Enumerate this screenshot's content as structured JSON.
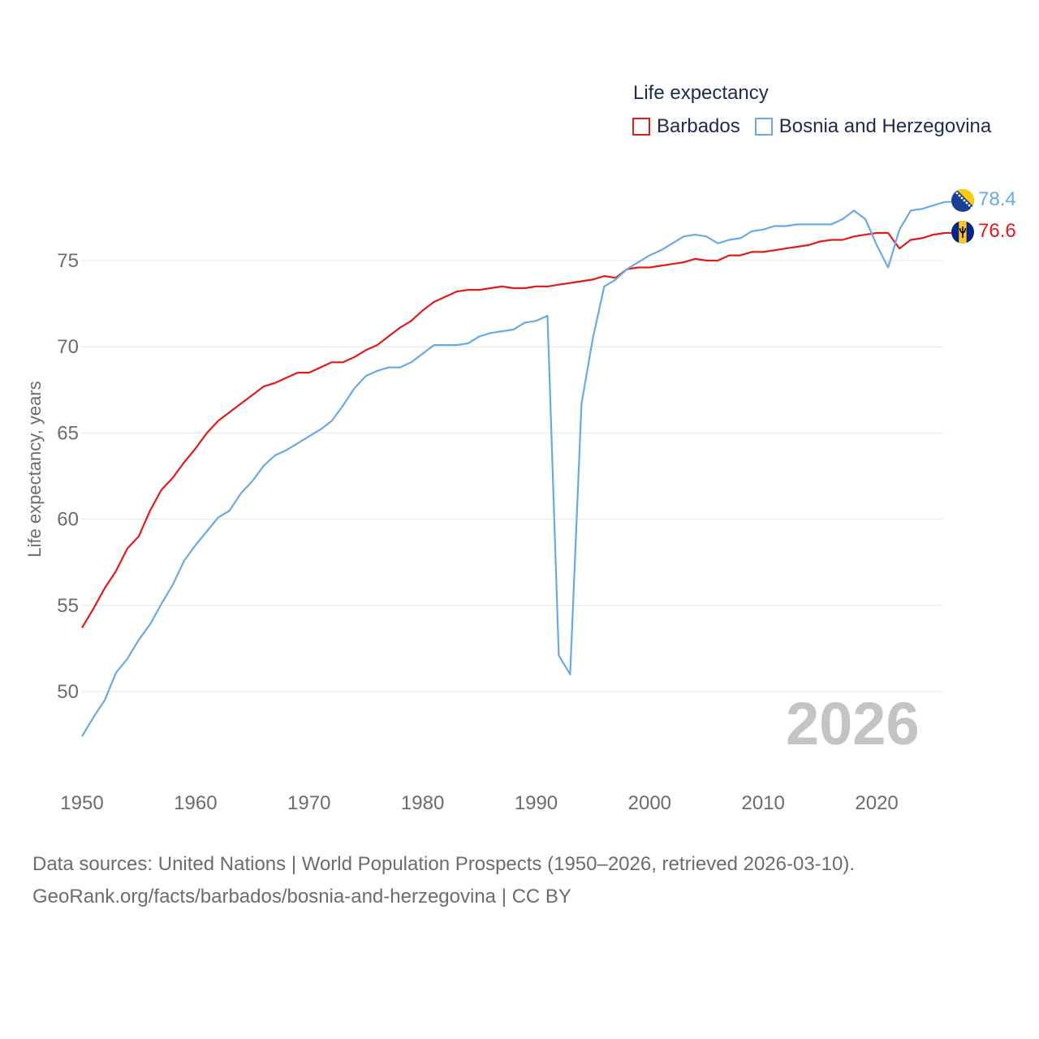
{
  "legend": {
    "title": "Life expectancy",
    "items": [
      {
        "label": "Barbados",
        "color": "#e31a1c"
      },
      {
        "label": "Bosnia and Herzegovina",
        "color": "#6aaae4"
      }
    ]
  },
  "year_display": "2026",
  "end_labels": {
    "bosnia": "78.4",
    "barbados": "76.6"
  },
  "footer": {
    "line1": "Data sources: United Nations | World Population Prospects (1950–2026, retrieved 2026-03-10).",
    "line2": "GeoRank.org/facts/barbados/bosnia-and-herzegovina | CC BY"
  },
  "chart_data": {
    "type": "line",
    "title": "Life expectancy",
    "ylabel": "Life expectancy, years",
    "xlabel": "",
    "xlim": [
      1950,
      2026
    ],
    "ylim": [
      45,
      80
    ],
    "xticks": [
      1950,
      1960,
      1970,
      1980,
      1990,
      2000,
      2010,
      2020
    ],
    "yticks": [
      50,
      55,
      60,
      65,
      70,
      75
    ],
    "grid": true,
    "legend_position": "top-right",
    "x": [
      1950,
      1951,
      1952,
      1953,
      1954,
      1955,
      1956,
      1957,
      1958,
      1959,
      1960,
      1961,
      1962,
      1963,
      1964,
      1965,
      1966,
      1967,
      1968,
      1969,
      1970,
      1971,
      1972,
      1973,
      1974,
      1975,
      1976,
      1977,
      1978,
      1979,
      1980,
      1981,
      1982,
      1983,
      1984,
      1985,
      1986,
      1987,
      1988,
      1989,
      1990,
      1991,
      1992,
      1993,
      1994,
      1995,
      1996,
      1997,
      1998,
      1999,
      2000,
      2001,
      2002,
      2003,
      2004,
      2005,
      2006,
      2007,
      2008,
      2009,
      2010,
      2011,
      2012,
      2013,
      2014,
      2015,
      2016,
      2017,
      2018,
      2019,
      2020,
      2021,
      2022,
      2023,
      2024,
      2025,
      2026
    ],
    "series": [
      {
        "name": "Barbados",
        "color": "#e31a1c",
        "values": [
          53.7,
          54.8,
          56.0,
          57.0,
          58.3,
          59.0,
          60.5,
          61.7,
          62.4,
          63.3,
          64.1,
          65.0,
          65.7,
          66.2,
          66.7,
          67.2,
          67.7,
          67.9,
          68.2,
          68.5,
          68.5,
          68.8,
          69.1,
          69.1,
          69.4,
          69.8,
          70.1,
          70.6,
          71.1,
          71.5,
          72.1,
          72.6,
          72.9,
          73.2,
          73.3,
          73.3,
          73.4,
          73.5,
          73.4,
          73.4,
          73.5,
          73.5,
          73.6,
          73.7,
          73.8,
          73.9,
          74.1,
          74.0,
          74.5,
          74.6,
          74.6,
          74.7,
          74.8,
          74.9,
          75.1,
          75.0,
          75.0,
          75.3,
          75.3,
          75.5,
          75.5,
          75.6,
          75.7,
          75.8,
          75.9,
          76.1,
          76.2,
          76.2,
          76.4,
          76.5,
          76.6,
          76.6,
          75.7,
          76.2,
          76.3,
          76.5,
          76.6
        ]
      },
      {
        "name": "Bosnia and Herzegovina",
        "color": "#6aaae4",
        "values": [
          47.4,
          48.5,
          49.5,
          51.1,
          51.9,
          53.0,
          53.9,
          55.1,
          56.2,
          57.6,
          58.5,
          59.3,
          60.1,
          60.5,
          61.5,
          62.2,
          63.1,
          63.7,
          64.0,
          64.4,
          64.8,
          65.2,
          65.7,
          66.6,
          67.6,
          68.3,
          68.6,
          68.8,
          68.8,
          69.1,
          69.6,
          70.1,
          70.1,
          70.1,
          70.2,
          70.6,
          70.8,
          70.9,
          71.0,
          71.4,
          71.5,
          71.8,
          52.1,
          51.0,
          66.7,
          70.5,
          73.5,
          73.9,
          74.5,
          74.9,
          75.3,
          75.6,
          76.0,
          76.4,
          76.5,
          76.4,
          76.0,
          76.2,
          76.3,
          76.7,
          76.8,
          77.0,
          77.0,
          77.1,
          77.1,
          77.1,
          77.1,
          77.4,
          77.9,
          77.4,
          75.9,
          74.6,
          76.8,
          77.9,
          78.0,
          78.2,
          78.4
        ]
      }
    ]
  }
}
